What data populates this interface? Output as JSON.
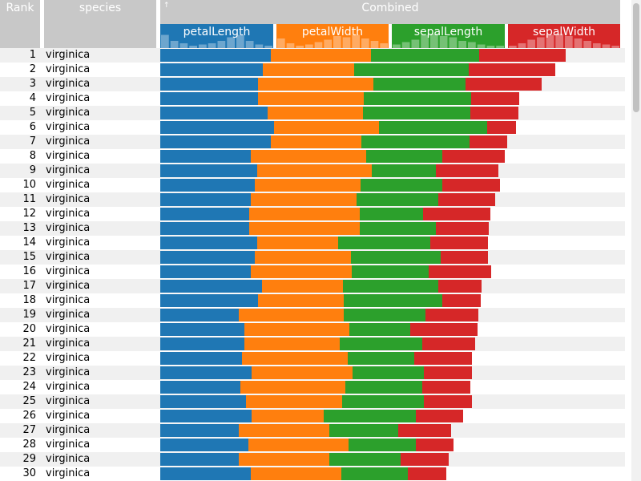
{
  "header": {
    "rank_label": "Rank",
    "species_label": "species",
    "combined_label": "Combined",
    "sort_indicator": "↑"
  },
  "colors": {
    "petalLength": "#1f77b4",
    "petalWidth": "#ff7f0e",
    "sepalLength": "#2ca02c",
    "sepalWidth": "#d62728",
    "header_gray": "#c8c8c8",
    "row_alt": "#f0f0f0"
  },
  "chart_data": {
    "type": "bar",
    "stacked": true,
    "orientation": "horizontal",
    "categories": [
      "1",
      "2",
      "3",
      "4",
      "5",
      "6",
      "7",
      "8",
      "9",
      "10",
      "11",
      "12",
      "13",
      "14",
      "15",
      "16",
      "17",
      "18",
      "19",
      "20",
      "21",
      "22",
      "23",
      "24",
      "25",
      "26",
      "27",
      "28",
      "29",
      "30"
    ],
    "species": [
      "virginica",
      "virginica",
      "virginica",
      "virginica",
      "virginica",
      "virginica",
      "virginica",
      "virginica",
      "virginica",
      "virginica",
      "virginica",
      "virginica",
      "virginica",
      "virginica",
      "virginica",
      "virginica",
      "virginica",
      "virginica",
      "virginica",
      "virginica",
      "virginica",
      "virginica",
      "virginica",
      "virginica",
      "virginica",
      "virginica",
      "virginica",
      "virginica",
      "virginica",
      "virginica"
    ],
    "series": [
      {
        "name": "petalLength",
        "values": [
          0.24,
          0.223,
          0.213,
          0.213,
          0.233,
          0.247,
          0.24,
          0.197,
          0.21,
          0.206,
          0.197,
          0.193,
          0.193,
          0.21,
          0.206,
          0.197,
          0.221,
          0.212,
          0.17,
          0.183,
          0.183,
          0.178,
          0.199,
          0.174,
          0.187,
          0.199,
          0.17,
          0.191,
          0.17,
          0.196
        ]
      },
      {
        "name": "petalWidth",
        "values": [
          0.219,
          0.198,
          0.25,
          0.229,
          0.208,
          0.229,
          0.198,
          0.25,
          0.25,
          0.229,
          0.229,
          0.24,
          0.24,
          0.177,
          0.208,
          0.219,
          0.177,
          0.187,
          0.229,
          0.229,
          0.208,
          0.229,
          0.219,
          0.229,
          0.208,
          0.156,
          0.198,
          0.219,
          0.198,
          0.198
        ]
      },
      {
        "name": "sepalLength",
        "values": [
          0.234,
          0.25,
          0.2,
          0.234,
          0.234,
          0.234,
          0.234,
          0.167,
          0.139,
          0.178,
          0.178,
          0.139,
          0.167,
          0.2,
          0.195,
          0.167,
          0.206,
          0.214,
          0.178,
          0.132,
          0.178,
          0.145,
          0.155,
          0.167,
          0.178,
          0.2,
          0.15,
          0.145,
          0.155,
          0.145
        ]
      },
      {
        "name": "sepalWidth",
        "values": [
          0.188,
          0.188,
          0.167,
          0.104,
          0.104,
          0.063,
          0.083,
          0.136,
          0.136,
          0.125,
          0.125,
          0.146,
          0.115,
          0.125,
          0.104,
          0.136,
          0.094,
          0.083,
          0.115,
          0.146,
          0.115,
          0.125,
          0.104,
          0.104,
          0.104,
          0.104,
          0.115,
          0.083,
          0.104,
          0.083
        ]
      }
    ]
  }
}
